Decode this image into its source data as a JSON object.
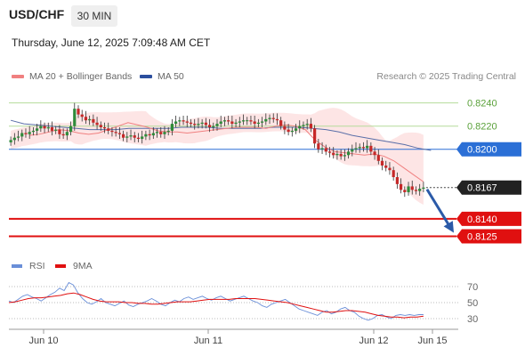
{
  "header": {
    "pair": "USD/CHF",
    "interval": "30 MIN",
    "datetime": "Thursday, June 12, 2025 7:09:48 AM CET"
  },
  "legend": {
    "ma20": "MA 20 + Bollinger Bands",
    "ma50": "MA 50",
    "credit": "Research © 2025 Trading Central",
    "colors": {
      "ma20": "#f08080",
      "ma50": "#2c4f9e",
      "bands": "#fde0e0"
    }
  },
  "rsi_legend": {
    "rsi": "RSI",
    "ma9": "9MA",
    "colors": {
      "rsi": "#6a8fd8",
      "ma9": "#e01010"
    }
  },
  "chart_data": [
    {
      "type": "candlestick",
      "ylim": [
        0.811,
        0.8252
      ],
      "x_ticks": [
        "Jun 10",
        "Jun 11",
        "Jun 12",
        "Jun 15"
      ],
      "current_price": "0.8167",
      "levels": [
        {
          "label": "0.8240",
          "value": 0.824,
          "style": "resistance-light"
        },
        {
          "label": "0.8220",
          "value": 0.822,
          "style": "resistance-light"
        },
        {
          "label": "0.8200",
          "value": 0.82,
          "style": "pivot"
        },
        {
          "label": "0.8140",
          "value": 0.814,
          "style": "support"
        },
        {
          "label": "0.8125",
          "value": 0.8125,
          "style": "support"
        }
      ],
      "series": [
        {
          "name": "price",
          "values": [
            0.8208,
            0.821,
            0.8211,
            0.8214,
            0.8213,
            0.8215,
            0.8216,
            0.8218,
            0.822,
            0.8218,
            0.8219,
            0.8216,
            0.8217,
            0.8213,
            0.8212,
            0.8215,
            0.822,
            0.8235,
            0.823,
            0.8228,
            0.8225,
            0.8226,
            0.8223,
            0.8221,
            0.8219,
            0.8218,
            0.8216,
            0.8215,
            0.8214,
            0.8213,
            0.821,
            0.8211,
            0.8212,
            0.821,
            0.8209,
            0.8211,
            0.8213,
            0.8212,
            0.8214,
            0.8215,
            0.8213,
            0.8215,
            0.8216,
            0.8222,
            0.8224,
            0.8225,
            0.8224,
            0.8223,
            0.8222,
            0.8221,
            0.8222,
            0.8223,
            0.8221,
            0.8219,
            0.822,
            0.8222,
            0.8224,
            0.8225,
            0.8224,
            0.8222,
            0.8223,
            0.8224,
            0.8225,
            0.8225,
            0.8224,
            0.8222,
            0.8223,
            0.8224,
            0.8226,
            0.8227,
            0.8226,
            0.8225,
            0.822,
            0.8217,
            0.8215,
            0.8216,
            0.8218,
            0.822,
            0.8221,
            0.8222,
            0.8218,
            0.8205,
            0.82,
            0.8201,
            0.8198,
            0.8197,
            0.8195,
            0.8196,
            0.8194,
            0.8195,
            0.8198,
            0.82,
            0.8201,
            0.8202,
            0.8201,
            0.8203,
            0.8198,
            0.8195,
            0.819,
            0.8186,
            0.8184,
            0.8182,
            0.8176,
            0.817,
            0.8165,
            0.8163,
            0.8168,
            0.8165,
            0.8164,
            0.8166,
            0.8167
          ]
        },
        {
          "name": "MA 20",
          "values": [
            0.8212,
            0.8213,
            0.8215,
            0.8217,
            0.8216,
            0.8214,
            0.8213,
            0.8214,
            0.8217,
            0.822,
            0.8223,
            0.8221,
            0.8219,
            0.8216,
            0.8215,
            0.8215,
            0.8214,
            0.8215,
            0.8216,
            0.8217,
            0.8218,
            0.8219,
            0.8219,
            0.8219,
            0.8218,
            0.822,
            0.8221,
            0.822,
            0.8217,
            0.8208,
            0.8202,
            0.8198,
            0.8197,
            0.8196,
            0.8195,
            0.8196,
            0.8194,
            0.819,
            0.8184,
            0.8178,
            0.8172
          ]
        },
        {
          "name": "MA 50",
          "values": [
            0.8225,
            0.8222,
            0.8221,
            0.822,
            0.8219,
            0.8218,
            0.8217,
            0.8217,
            0.8217,
            0.8218,
            0.8218,
            0.8218,
            0.8218,
            0.8219,
            0.8219,
            0.8219,
            0.8218,
            0.8218,
            0.8218,
            0.8218,
            0.8219,
            0.8219,
            0.8219,
            0.8218,
            0.8217,
            0.8215,
            0.8212,
            0.821,
            0.8208,
            0.8206,
            0.8204,
            0.8201,
            0.8199
          ]
        }
      ]
    },
    {
      "type": "line",
      "ylim": [
        20,
        80
      ],
      "y_ticks": [
        "70",
        "50",
        "30"
      ],
      "series": [
        {
          "name": "RSI",
          "values": [
            52,
            50,
            54,
            58,
            60,
            57,
            55,
            52,
            56,
            60,
            63,
            68,
            65,
            75,
            72,
            62,
            55,
            50,
            48,
            51,
            55,
            50,
            48,
            46,
            49,
            52,
            47,
            45,
            48,
            50,
            52,
            55,
            52,
            48,
            46,
            50,
            53,
            51,
            55,
            57,
            54,
            56,
            58,
            55,
            53,
            56,
            58,
            55,
            52,
            54,
            56,
            58,
            55,
            52,
            50,
            46,
            44,
            48,
            50,
            52,
            54,
            50,
            46,
            42,
            40,
            38,
            36,
            34,
            38,
            40,
            36,
            38,
            42,
            44,
            40,
            38,
            33,
            30,
            28,
            30,
            34,
            35,
            32,
            30,
            34,
            35,
            34,
            35,
            34,
            35,
            35
          ]
        },
        {
          "name": "9MA",
          "values": [
            50,
            51,
            53,
            55,
            56,
            56,
            57,
            58,
            59,
            61,
            62,
            60,
            57,
            54,
            52,
            51,
            51,
            51,
            50,
            50,
            49,
            49,
            48,
            48,
            49,
            50,
            51,
            51,
            51,
            52,
            53,
            54,
            54,
            54,
            54,
            55,
            55,
            55,
            55,
            54,
            53,
            52,
            51,
            50,
            48,
            46,
            44,
            42,
            40,
            38,
            38,
            39,
            40,
            40,
            39,
            38,
            36,
            34,
            33,
            32,
            32,
            31,
            32,
            32,
            33
          ]
        }
      ]
    }
  ]
}
